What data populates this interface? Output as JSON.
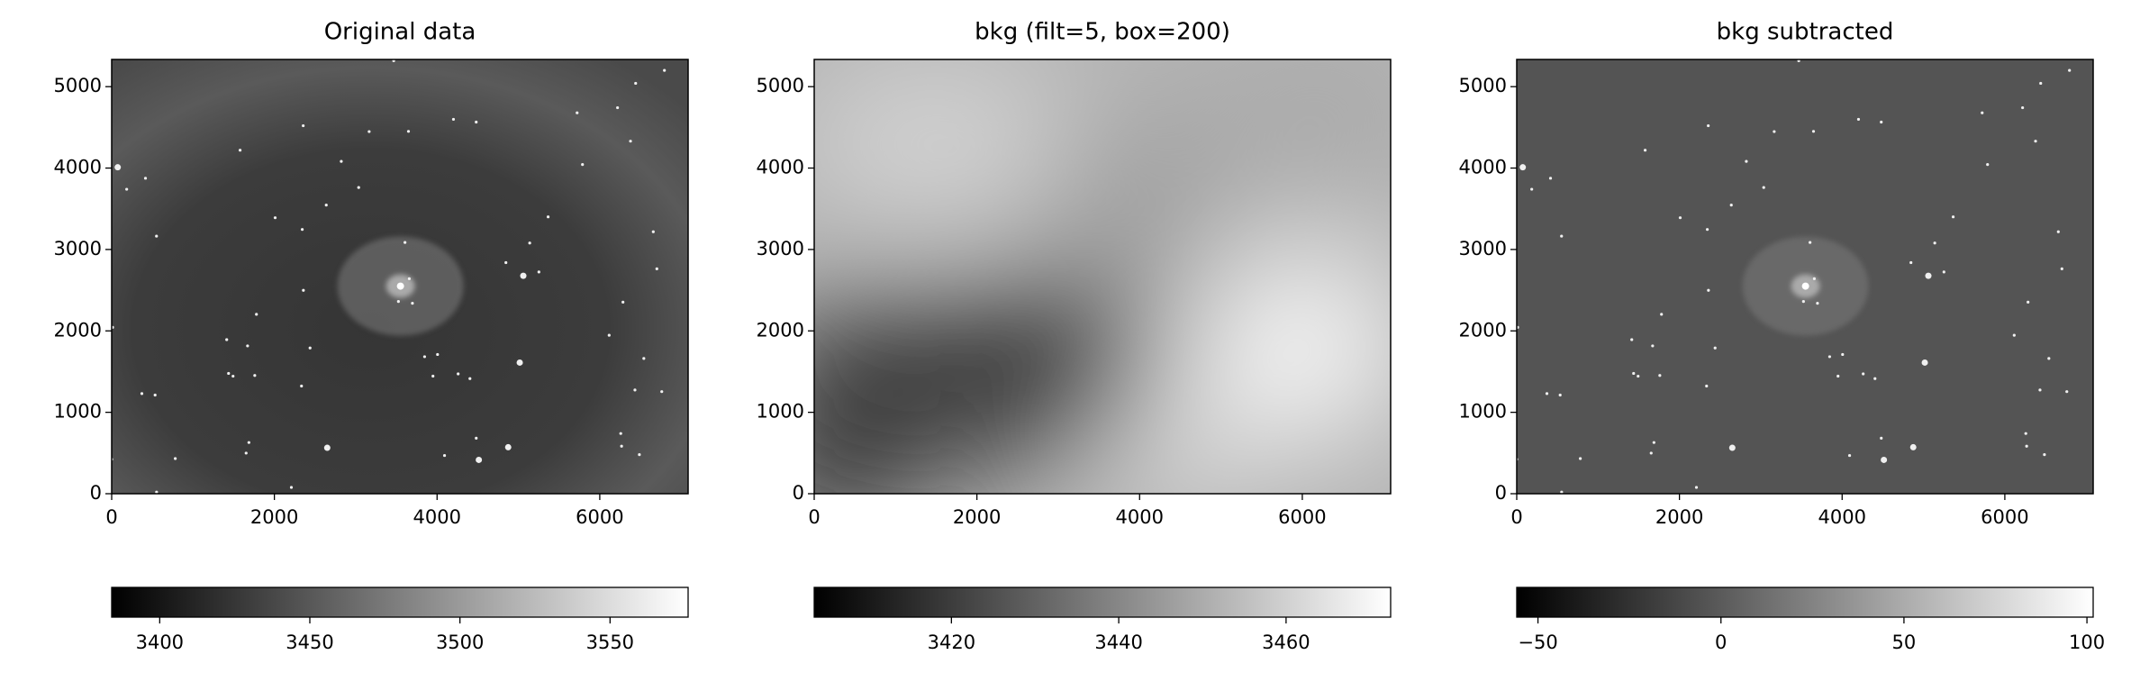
{
  "chart_data": [
    {
      "type": "image",
      "title": "Original data",
      "colormap": "gray",
      "xlim": [
        0,
        7086
      ],
      "ylim": [
        0,
        5334
      ],
      "xticks": [
        0,
        2000,
        4000,
        6000
      ],
      "yticks": [
        0,
        1000,
        2000,
        3000,
        4000,
        5000
      ],
      "colorbar_lim": [
        3384,
        3576
      ],
      "colorbar_ticks": [
        3400,
        3450,
        3500,
        3550
      ]
    },
    {
      "type": "image",
      "title": "bkg (filt=5, box=200)",
      "colormap": "gray",
      "xlim": [
        0,
        7086
      ],
      "ylim": [
        0,
        5334
      ],
      "xticks": [
        0,
        2000,
        4000,
        6000
      ],
      "yticks": [
        0,
        1000,
        2000,
        3000,
        4000,
        5000
      ],
      "colorbar_lim": [
        3403.6,
        3472.5
      ],
      "colorbar_ticks": [
        3420,
        3440,
        3460
      ]
    },
    {
      "type": "image",
      "title": "bkg subtracted",
      "colormap": "gray",
      "xlim": [
        0,
        7086
      ],
      "ylim": [
        0,
        5334
      ],
      "xticks": [
        0,
        2000,
        4000,
        6000
      ],
      "yticks": [
        0,
        1000,
        2000,
        3000,
        4000,
        5000
      ],
      "colorbar_lim": [
        -55.8,
        101.7
      ],
      "colorbar_ticks": [
        {
          "value": -50,
          "label": "−50"
        },
        0,
        50,
        100
      ]
    }
  ]
}
